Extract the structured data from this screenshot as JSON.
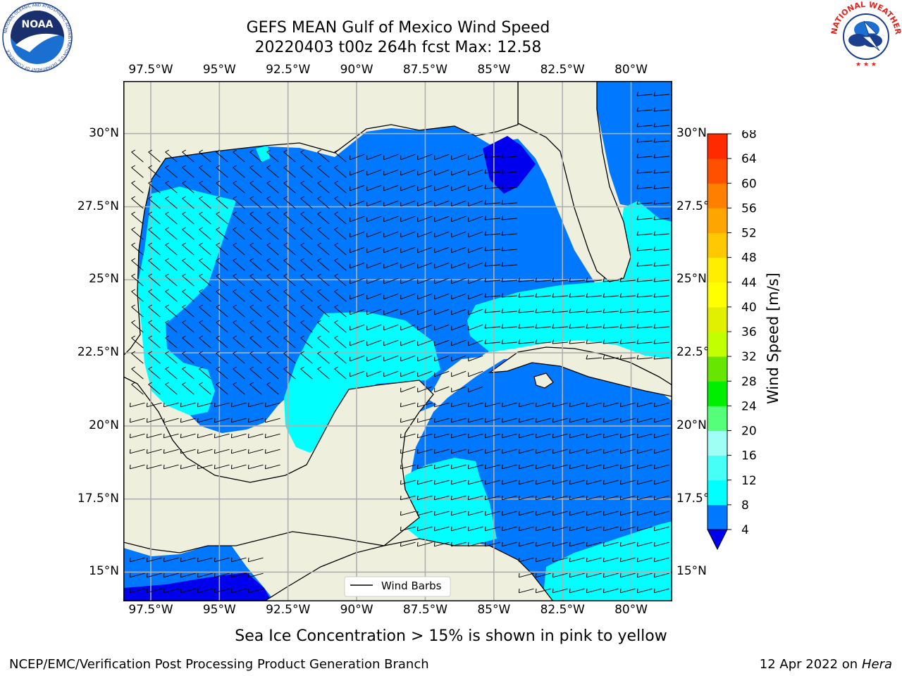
{
  "title": {
    "line1": "GEFS MEAN Gulf of Mexico Wind Speed",
    "line2": "20220403 t00z 264h fcst   Max: 12.58"
  },
  "logos": {
    "noara": "NOAA",
    "noaa_ring": "NATIONAL OCEANIC AND ATMOSPHERIC ADMINISTRATION",
    "noaa_ring_bottom": "U.S. DEPARTMENT OF COMMERCE",
    "nws_ring": "NATIONAL WEATHER SERVICE"
  },
  "map": {
    "lon_range": [
      -98.5,
      -78.5
    ],
    "lat_range": [
      14,
      31.8
    ],
    "lon_ticks": [
      {
        "value": -97.5,
        "label": "97.5°W"
      },
      {
        "value": -95,
        "label": "95°W"
      },
      {
        "value": -92.5,
        "label": "92.5°W"
      },
      {
        "value": -90,
        "label": "90°W"
      },
      {
        "value": -87.5,
        "label": "87.5°W"
      },
      {
        "value": -85,
        "label": "85°W"
      },
      {
        "value": -82.5,
        "label": "82.5°W"
      },
      {
        "value": -80,
        "label": "80°W"
      }
    ],
    "lat_ticks": [
      {
        "value": 30,
        "label": "30°N"
      },
      {
        "value": 27.5,
        "label": "27.5°N"
      },
      {
        "value": 25,
        "label": "25°N"
      },
      {
        "value": 22.5,
        "label": "22.5°N"
      },
      {
        "value": 20,
        "label": "20°N"
      },
      {
        "value": 17.5,
        "label": "17.5°N"
      },
      {
        "value": 15,
        "label": "15°N"
      }
    ],
    "legend_label": "Wind Barbs",
    "colors": {
      "land": "#efefdd",
      "band_4_8": "#0078ff",
      "band_8_12": "#00ffff",
      "band_below_4": "#0000ee",
      "grid": "#b0b0b0"
    }
  },
  "colorbar": {
    "label": "Wind Speed [m/s]",
    "levels": [
      4,
      8,
      12,
      16,
      20,
      24,
      28,
      32,
      36,
      40,
      44,
      48,
      52,
      56,
      60,
      64,
      68
    ],
    "colors": [
      "#0078ff",
      "#00ffff",
      "#46fff6",
      "#a0fff4",
      "#55ff7a",
      "#00ee00",
      "#66e600",
      "#c2ff00",
      "#e0f000",
      "#ffff00",
      "#ffee00",
      "#ffc800",
      "#ffa500",
      "#ff8000",
      "#ff5000",
      "#ff2a00"
    ],
    "under_color": "#0000ee"
  },
  "footer": {
    "note": "Sea Ice Concentration > 15% is shown in pink to yellow",
    "left": "NCEP/EMC/Verification Post Processing Product Generation Branch",
    "date": "12 Apr 2022 on ",
    "host": "Hera"
  }
}
